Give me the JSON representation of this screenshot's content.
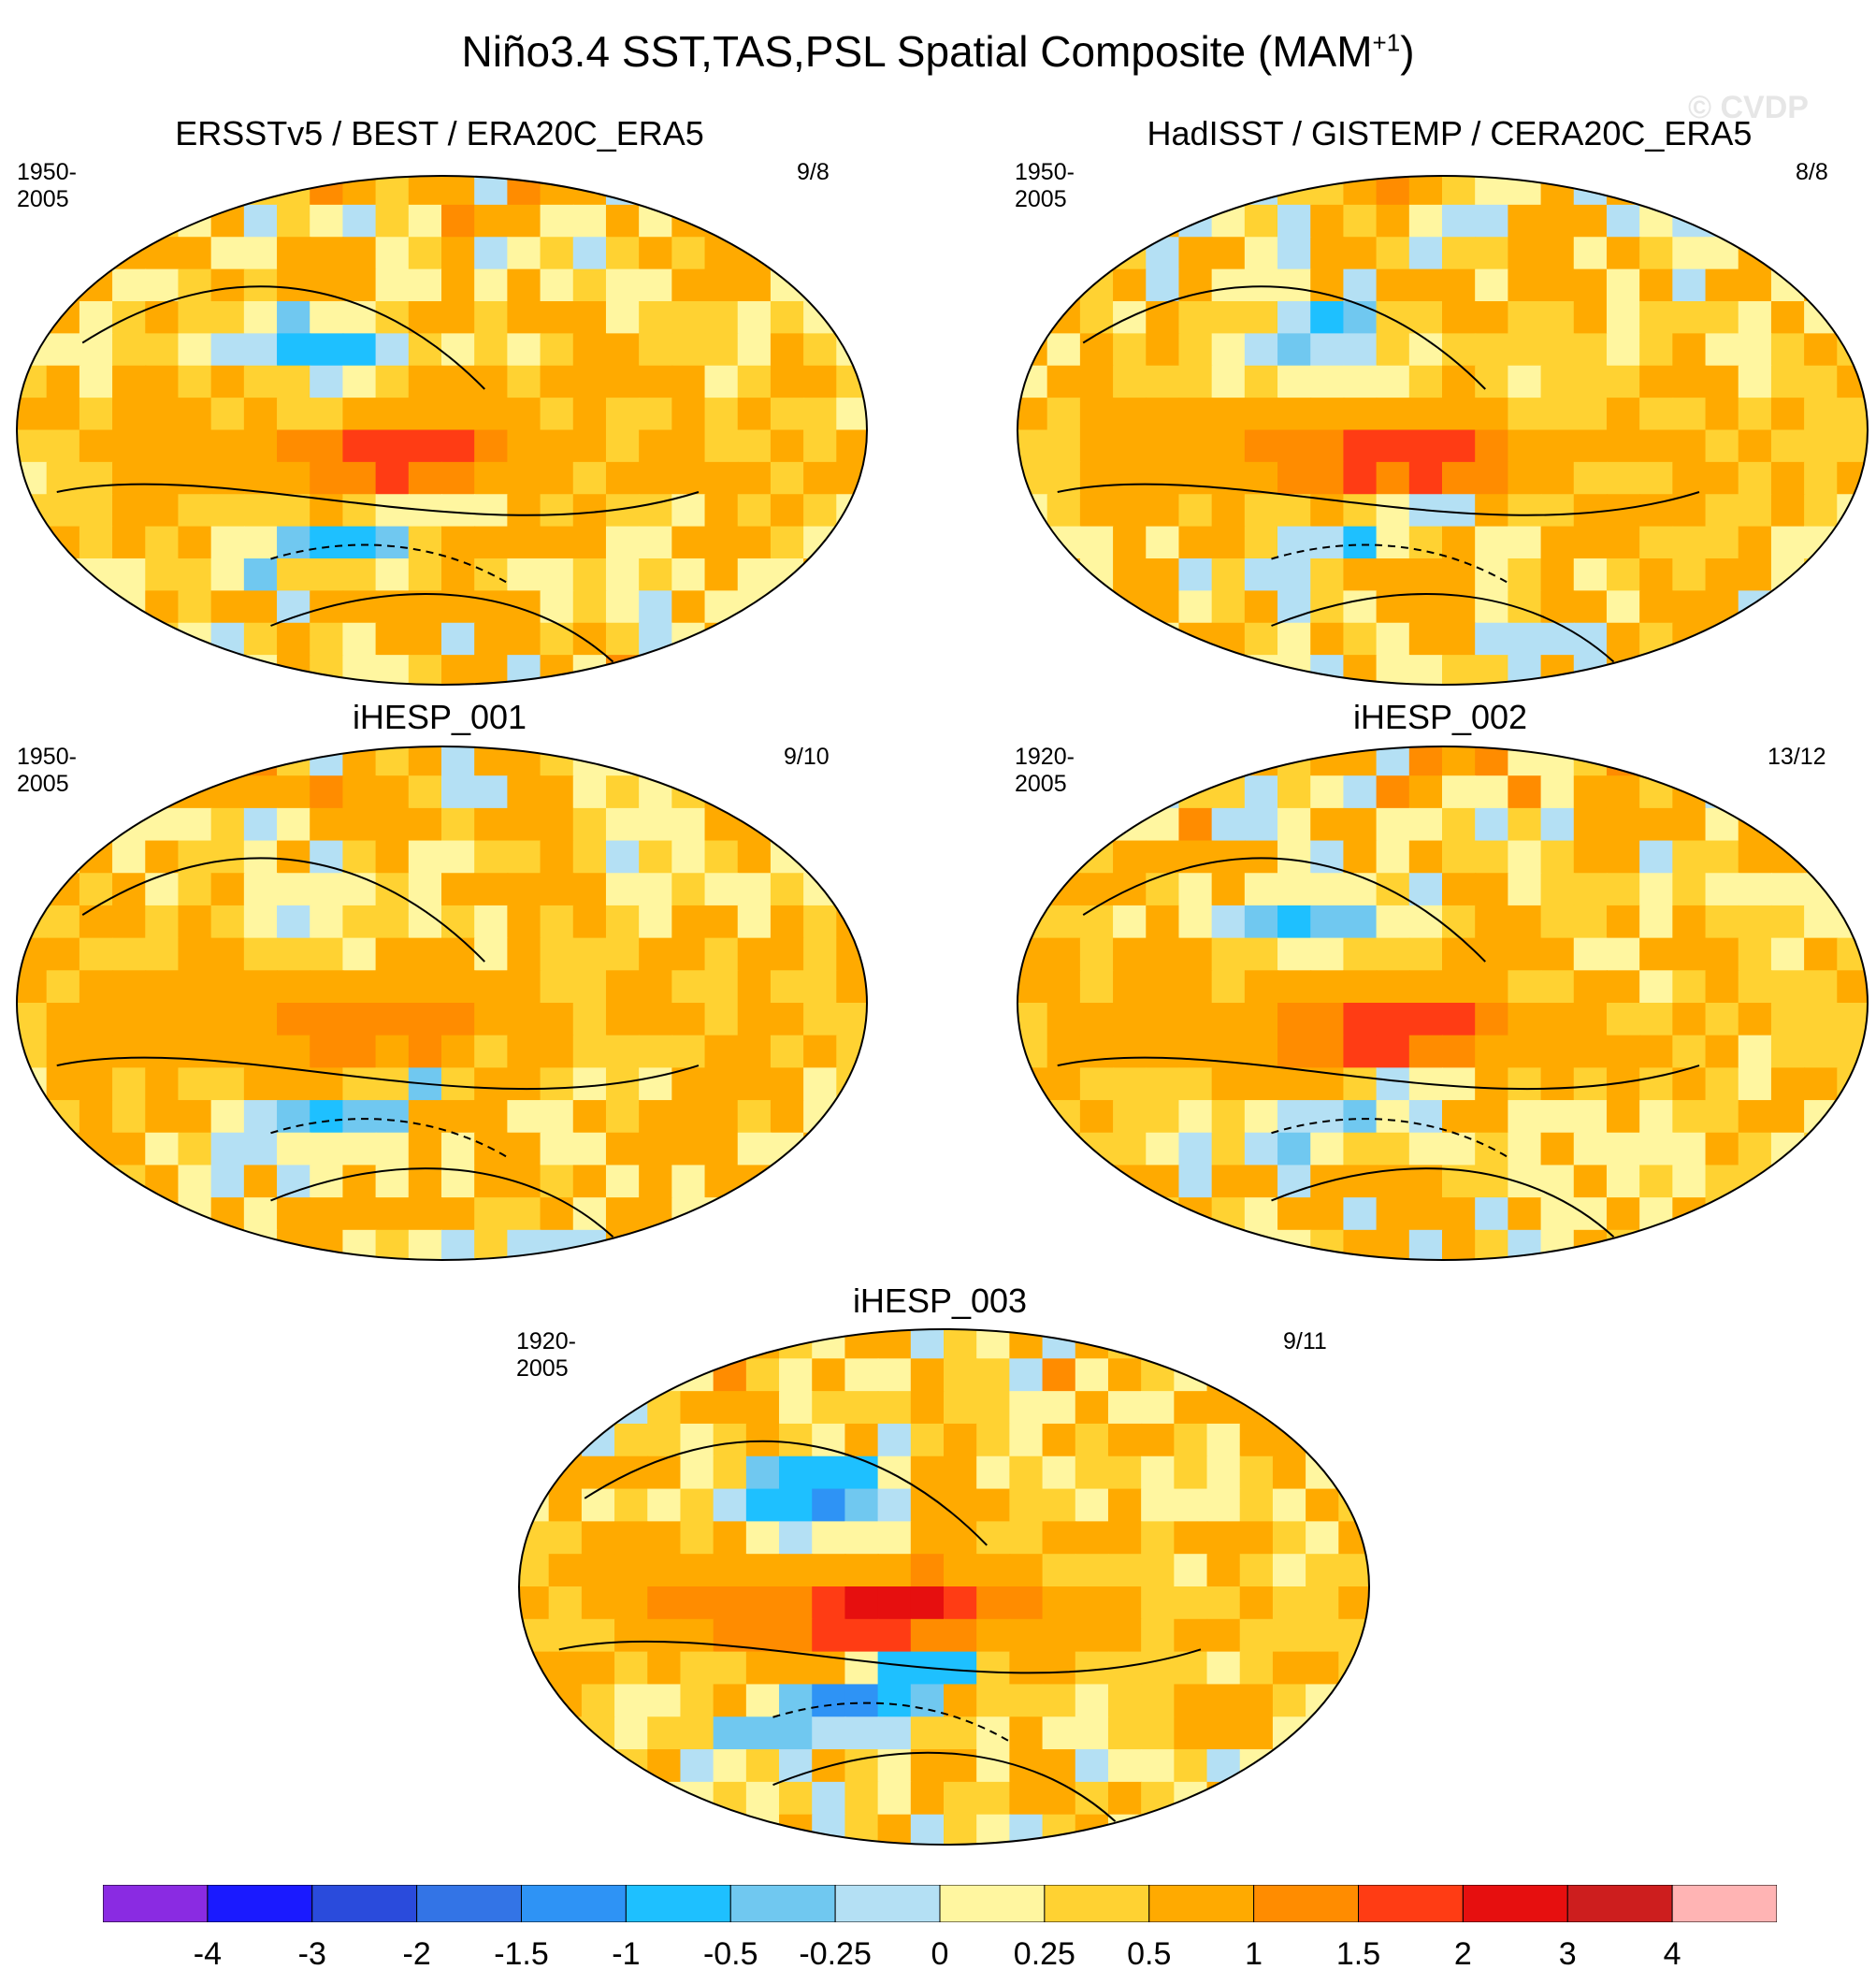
{
  "figure": {
    "title_main": "Niño3.4 SST,TAS,PSL Spatial Composite (MAM",
    "title_sup": "+1",
    "title_end": ")",
    "copyright": "© CVDP"
  },
  "chart_data": {
    "type": "heatmap",
    "title": "Niño3.4 SST,TAS,PSL Spatial Composite (MAM+1)",
    "panels": [
      {
        "name": "ERSSTv5 / BEST / ERA20C_ERA5",
        "years": "1950-2005",
        "count": "9/8",
        "nino_peak": 1.5,
        "nw_pac": -1.0,
        "sh_band": -0.5
      },
      {
        "name": "HadISST / GISTEMP / CERA20C_ERA5",
        "years": "1950-2005",
        "count": "8/8",
        "nino_peak": 1.5,
        "nw_pac": -1.0,
        "sh_band": -0.5
      },
      {
        "name": "iHESP_001",
        "years": "1950-2005",
        "count": "9/10",
        "nino_peak": 1.0,
        "nw_pac": -0.5,
        "sh_band": -0.5
      },
      {
        "name": "iHESP_002",
        "years": "1920-2005",
        "count": "13/12",
        "nino_peak": 1.5,
        "nw_pac": -1.0,
        "sh_band": -0.5
      },
      {
        "name": "iHESP_003",
        "years": "1920-2005",
        "count": "9/11",
        "nino_peak": 2.0,
        "nw_pac": -1.5,
        "sh_band": -1.0
      }
    ],
    "colorbar": {
      "labels": [
        "-4",
        "-3",
        "-2",
        "-1.5",
        "-1",
        "-0.5",
        "-0.25",
        "0",
        "0.25",
        "0.5",
        "1",
        "1.5",
        "2",
        "3",
        "4"
      ],
      "colors": [
        "#8a2be2",
        "#1a1aff",
        "#2a4bdc",
        "#3374e6",
        "#2e93f5",
        "#1ec0ff",
        "#70c8f0",
        "#b4e0f4",
        "#fff6a0",
        "#ffd232",
        "#ffaa00",
        "#ff8c00",
        "#ff3c14",
        "#e60f0f",
        "#cd1e1e",
        "#ffb4b4"
      ]
    }
  }
}
